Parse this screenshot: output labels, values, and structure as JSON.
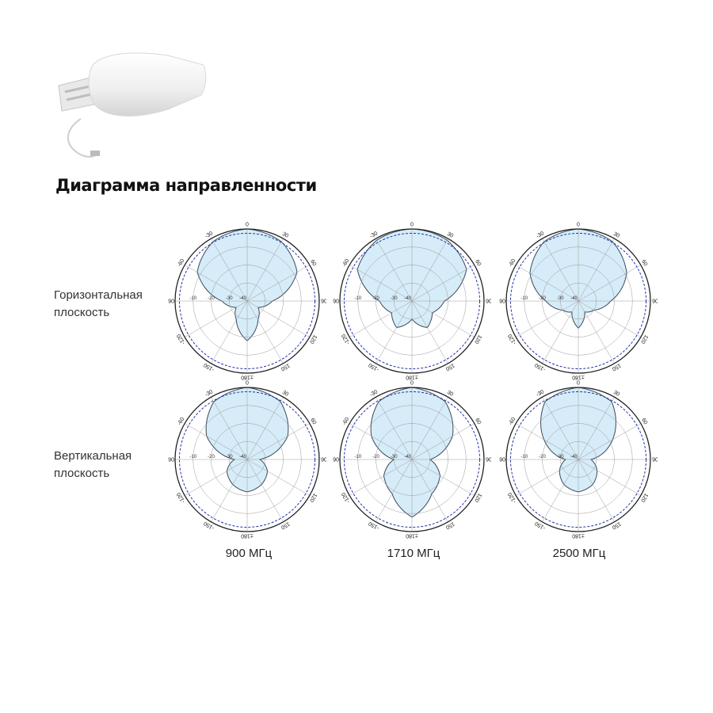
{
  "title": "Диаграмма направленности",
  "rows": [
    {
      "line1": "Горизонтальная",
      "line2": "плоскость"
    },
    {
      "line1": "Вертикальная",
      "line2": "плоскость"
    }
  ],
  "frequencies": [
    "900 МГц",
    "1710 МГц",
    "2500 МГц"
  ],
  "angle_labels": [
    "0",
    "30",
    "60",
    "90",
    "120",
    "150",
    "±180",
    "-150",
    "-120",
    "-90",
    "-60",
    "-30"
  ],
  "ring_labels": [
    "-10",
    "-20",
    "-30",
    "-40"
  ],
  "colors": {
    "fill": "#d6ecf8",
    "outline": "#3a4a5a",
    "reference": "#2233aa",
    "grid": "#9a9a9a"
  },
  "chart_data": [
    {
      "type": "polar",
      "plane": "Горизонтальная плоскость",
      "frequency": "900 МГц",
      "pattern_db": {
        "angles_deg": [
          0,
          30,
          60,
          90,
          120,
          150,
          180,
          -150,
          -120,
          -90,
          -60,
          -30
        ],
        "values": [
          0,
          -2,
          -8,
          -26,
          -33,
          -28,
          -18,
          -28,
          -33,
          -26,
          -8,
          -2
        ]
      }
    },
    {
      "type": "polar",
      "plane": "Горизонтальная плоскость",
      "frequency": "1710 МГц",
      "pattern_db": {
        "angles_deg": [
          0,
          30,
          60,
          90,
          120,
          150,
          180,
          -150,
          -120,
          -90,
          -60,
          -30
        ],
        "values": [
          0,
          -1,
          -5,
          -22,
          -27,
          -23,
          -30,
          -23,
          -27,
          -22,
          -5,
          -1
        ]
      }
    },
    {
      "type": "polar",
      "plane": "Горизонтальная плоскость",
      "frequency": "2500 МГц",
      "pattern_db": {
        "angles_deg": [
          0,
          30,
          60,
          90,
          120,
          150,
          180,
          -150,
          -120,
          -90,
          -60,
          -30
        ],
        "values": [
          0,
          -2,
          -9,
          -22,
          -30,
          -33,
          -25,
          -33,
          -30,
          -22,
          -9,
          -2
        ]
      }
    },
    {
      "type": "polar",
      "plane": "Вертикальная плоскость",
      "frequency": "900 МГц",
      "pattern_db": {
        "angles_deg": [
          0,
          30,
          60,
          90,
          120,
          150,
          180,
          -150,
          -120,
          -90,
          -60,
          -30
        ],
        "values": [
          0,
          -3,
          -14,
          -33,
          -27,
          -24,
          -22,
          -24,
          -27,
          -33,
          -14,
          -3
        ]
      }
    },
    {
      "type": "polar",
      "plane": "Вертикальная плоскость",
      "frequency": "1710 МГц",
      "pattern_db": {
        "angles_deg": [
          0,
          30,
          60,
          90,
          120,
          150,
          180,
          -150,
          -120,
          -90,
          -60,
          -30
        ],
        "values": [
          0,
          -3,
          -14,
          -30,
          -22,
          -18,
          -8,
          -18,
          -22,
          -30,
          -14,
          -3
        ]
      }
    },
    {
      "type": "polar",
      "plane": "Вертикальная плоскость",
      "frequency": "2500 МГц",
      "pattern_db": {
        "angles_deg": [
          0,
          30,
          60,
          90,
          120,
          150,
          180,
          -150,
          -120,
          -90,
          -60,
          -30
        ],
        "values": [
          0,
          -3,
          -18,
          -33,
          -28,
          -24,
          -22,
          -24,
          -28,
          -33,
          -18,
          -3
        ]
      }
    }
  ]
}
